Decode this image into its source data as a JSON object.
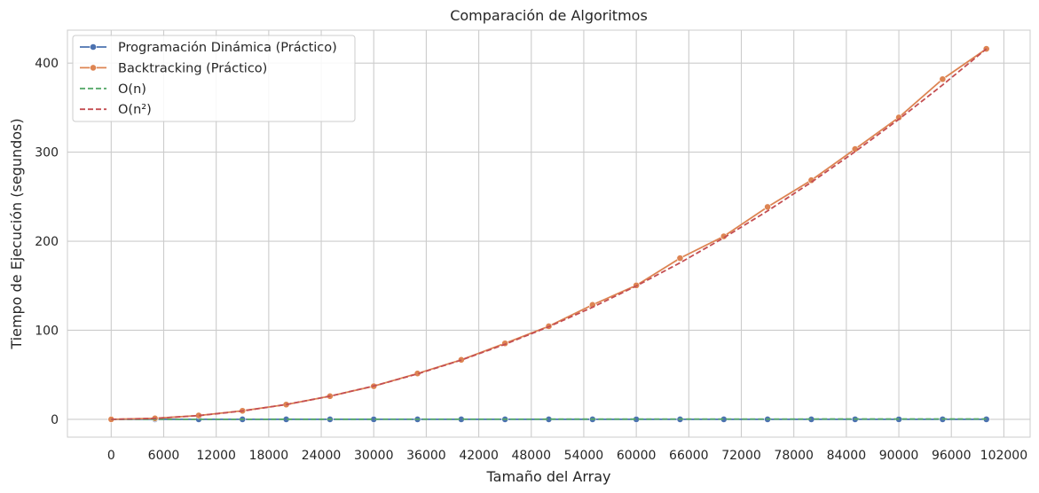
{
  "chart_data": {
    "type": "line",
    "title": "Comparación de Algoritmos",
    "xlabel": "Tamaño del Array",
    "ylabel": "Tiempo de Ejecución (segundos)",
    "xlim": [
      -5000,
      105000
    ],
    "ylim": [
      -20,
      437
    ],
    "xticks": [
      0,
      6000,
      12000,
      18000,
      24000,
      30000,
      36000,
      42000,
      48000,
      54000,
      60000,
      66000,
      72000,
      78000,
      84000,
      90000,
      96000,
      102000
    ],
    "yticks": [
      0,
      100,
      200,
      300,
      400
    ],
    "grid": true,
    "legend_position": "top-left",
    "x": [
      0,
      5000,
      10000,
      15000,
      20000,
      25000,
      30000,
      35000,
      40000,
      45000,
      50000,
      55000,
      60000,
      65000,
      70000,
      75000,
      80000,
      85000,
      90000,
      95000,
      100000
    ],
    "series": [
      {
        "name": "Programación Dinámica (Práctico)",
        "color": "#4c72b0",
        "style": "solid",
        "marker": true,
        "values": [
          0,
          0.001,
          0.002,
          0.003,
          0.004,
          0.005,
          0.006,
          0.007,
          0.008,
          0.009,
          0.01,
          0.011,
          0.012,
          0.013,
          0.014,
          0.015,
          0.016,
          0.017,
          0.018,
          0.019,
          0.02
        ]
      },
      {
        "name": "Backtracking (Práctico)",
        "color": "#dd8452",
        "style": "solid",
        "marker": true,
        "values": [
          0,
          1.1,
          4.3,
          9.6,
          16.6,
          26,
          37.2,
          51.5,
          66.8,
          85.3,
          104.5,
          128.5,
          150.4,
          181,
          205.5,
          238.5,
          268.5,
          303.5,
          339,
          382,
          416
        ]
      },
      {
        "name": "O(n)",
        "color": "#55a868",
        "style": "dashed",
        "marker": false,
        "values": [
          0,
          0.02,
          0.04,
          0.06,
          0.08,
          0.1,
          0.12,
          0.14,
          0.16,
          0.18,
          0.2,
          0.22,
          0.24,
          0.26,
          0.28,
          0.3,
          0.32,
          0.34,
          0.36,
          0.38,
          0.4
        ]
      },
      {
        "name": "O(n²)",
        "color": "#c44e52",
        "style": "dashed",
        "marker": false,
        "values": [
          0,
          1.04,
          4.16,
          9.36,
          16.64,
          26,
          37.44,
          50.96,
          66.56,
          84.24,
          104,
          125.84,
          149.76,
          175.76,
          203.84,
          234,
          266.24,
          300.56,
          336.96,
          375.44,
          416
        ]
      }
    ]
  }
}
